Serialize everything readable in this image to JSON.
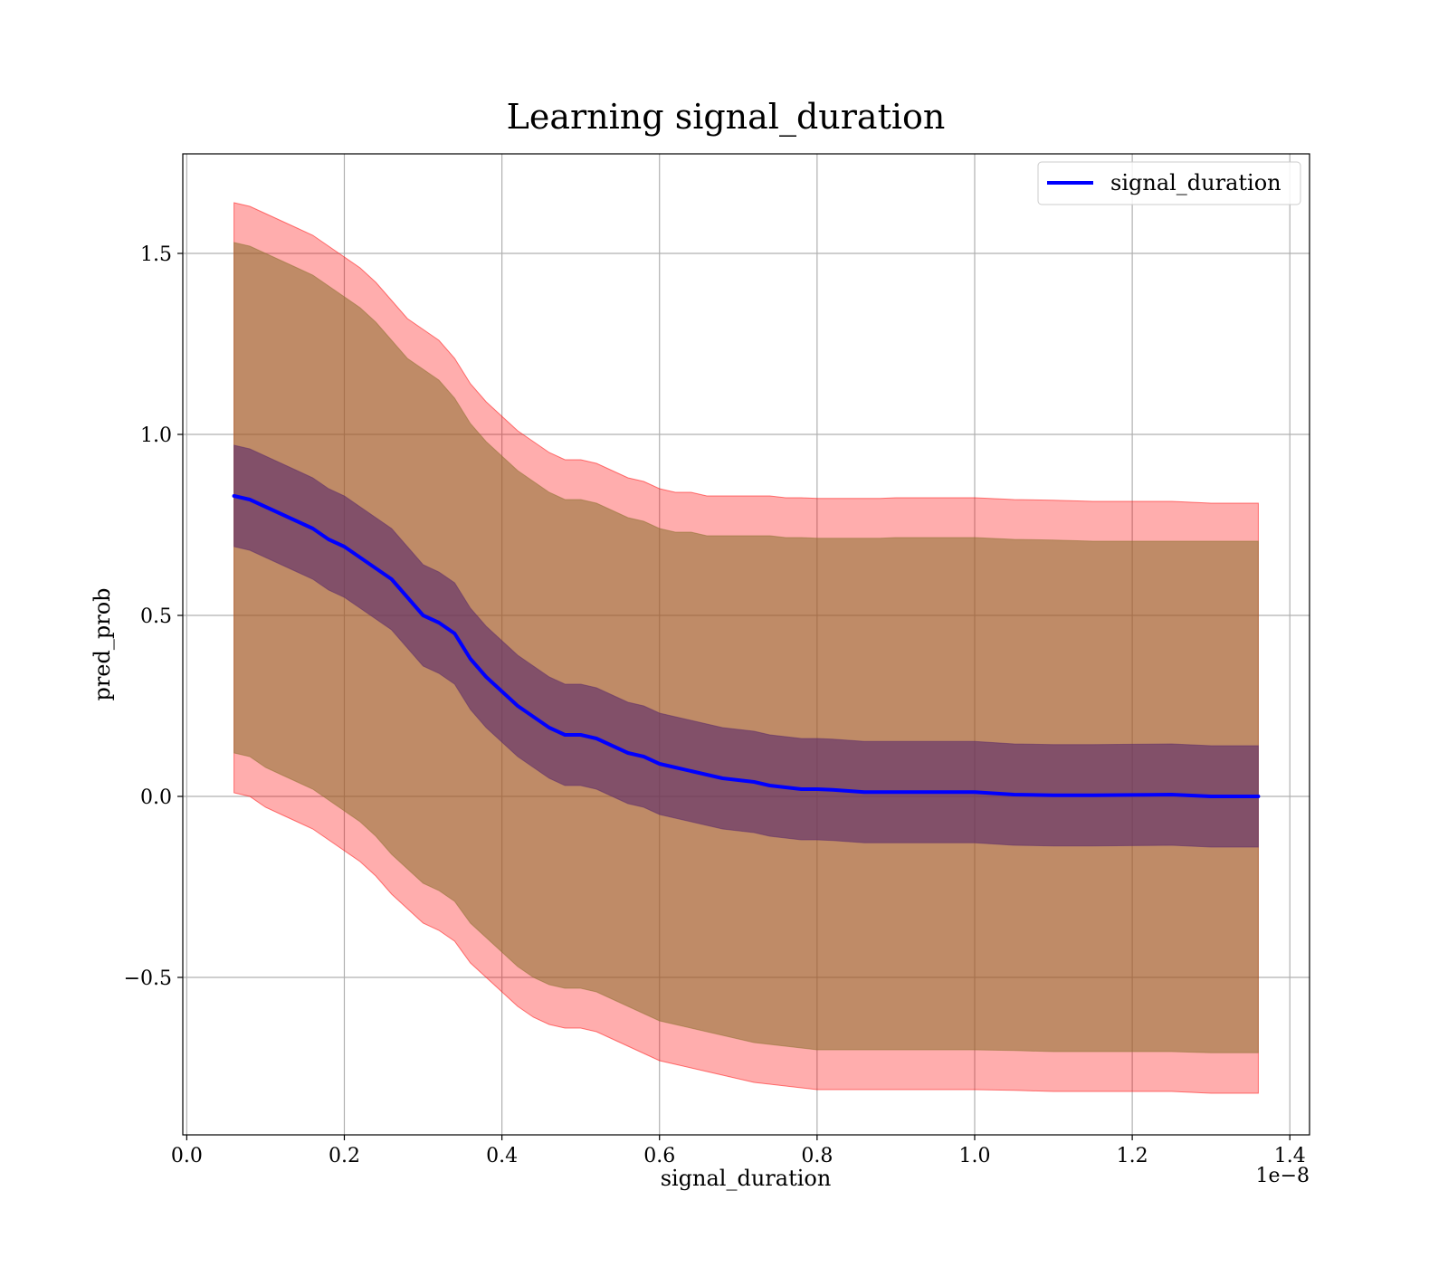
{
  "chart_data": {
    "type": "line",
    "title": "Learning signal_duration",
    "xlabel": "signal_duration",
    "ylabel": "pred_prob",
    "x_offset_label": "1e−8",
    "xlim": [
      -0.005,
      1.425
    ],
    "ylim": [
      -0.935,
      1.775
    ],
    "xticks": [
      0.0,
      0.2,
      0.4,
      0.6,
      0.8,
      1.0,
      1.2,
      1.4
    ],
    "xtick_labels": [
      "0.0",
      "0.2",
      "0.4",
      "0.6",
      "0.8",
      "1.0",
      "1.2",
      "1.4"
    ],
    "yticks": [
      -0.5,
      0.0,
      0.5,
      1.0,
      1.5
    ],
    "ytick_labels": [
      "−0.5",
      "0.0",
      "0.5",
      "1.0",
      "1.5"
    ],
    "grid": true,
    "legend": {
      "placement": "top-right",
      "entries": [
        "signal_duration"
      ]
    },
    "colors": {
      "line": "#0000ff",
      "band_outer": "#ff0000",
      "band_middle": "#8b6f2e",
      "band_inner": "#5a2a6a",
      "grid": "#b0b0b0"
    },
    "x": [
      0.06,
      0.08,
      0.1,
      0.12,
      0.14,
      0.16,
      0.18,
      0.2,
      0.22,
      0.24,
      0.26,
      0.28,
      0.3,
      0.32,
      0.34,
      0.36,
      0.38,
      0.4,
      0.42,
      0.44,
      0.46,
      0.48,
      0.5,
      0.52,
      0.54,
      0.56,
      0.58,
      0.6,
      0.62,
      0.64,
      0.66,
      0.68,
      0.7,
      0.72,
      0.74,
      0.76,
      0.78,
      0.8,
      0.82,
      0.84,
      0.86,
      0.88,
      0.9,
      0.95,
      1.0,
      1.05,
      1.1,
      1.15,
      1.2,
      1.25,
      1.3,
      1.36
    ],
    "series": [
      {
        "name": "signal_duration",
        "values": [
          0.83,
          0.82,
          0.8,
          0.78,
          0.76,
          0.74,
          0.71,
          0.69,
          0.66,
          0.63,
          0.6,
          0.55,
          0.5,
          0.48,
          0.45,
          0.38,
          0.33,
          0.29,
          0.25,
          0.22,
          0.19,
          0.17,
          0.17,
          0.16,
          0.14,
          0.12,
          0.11,
          0.09,
          0.08,
          0.07,
          0.06,
          0.05,
          0.045,
          0.04,
          0.03,
          0.025,
          0.02,
          0.02,
          0.018,
          0.015,
          0.012,
          0.012,
          0.012,
          0.012,
          0.012,
          0.005,
          0.003,
          0.003,
          0.004,
          0.005,
          0.0,
          0.0
        ]
      }
    ],
    "bands": [
      {
        "lower": [
          0.01,
          0.0,
          -0.03,
          -0.05,
          -0.07,
          -0.09,
          -0.12,
          -0.15,
          -0.18,
          -0.22,
          -0.27,
          -0.31,
          -0.35,
          -0.37,
          -0.4,
          -0.46,
          -0.5,
          -0.54,
          -0.58,
          -0.61,
          -0.63,
          -0.64,
          -0.64,
          -0.65,
          -0.67,
          -0.69,
          -0.71,
          -0.73,
          -0.74,
          -0.75,
          -0.76,
          -0.77,
          -0.78,
          -0.79,
          -0.795,
          -0.8,
          -0.805,
          -0.81,
          -0.81,
          -0.81,
          -0.81,
          -0.81,
          -0.81,
          -0.81,
          -0.81,
          -0.812,
          -0.815,
          -0.815,
          -0.815,
          -0.815,
          -0.82,
          -0.82
        ],
        "upper": [
          1.64,
          1.63,
          1.61,
          1.59,
          1.57,
          1.55,
          1.52,
          1.49,
          1.46,
          1.42,
          1.37,
          1.32,
          1.29,
          1.26,
          1.21,
          1.14,
          1.09,
          1.05,
          1.01,
          0.98,
          0.95,
          0.93,
          0.93,
          0.92,
          0.9,
          0.88,
          0.87,
          0.85,
          0.84,
          0.84,
          0.83,
          0.83,
          0.83,
          0.83,
          0.83,
          0.825,
          0.825,
          0.823,
          0.823,
          0.823,
          0.823,
          0.823,
          0.825,
          0.825,
          0.825,
          0.82,
          0.818,
          0.815,
          0.815,
          0.815,
          0.81,
          0.81
        ]
      },
      {
        "lower": [
          0.12,
          0.11,
          0.08,
          0.06,
          0.04,
          0.02,
          -0.01,
          -0.04,
          -0.07,
          -0.11,
          -0.16,
          -0.2,
          -0.24,
          -0.26,
          -0.29,
          -0.35,
          -0.39,
          -0.43,
          -0.47,
          -0.5,
          -0.52,
          -0.53,
          -0.53,
          -0.54,
          -0.56,
          -0.58,
          -0.6,
          -0.62,
          -0.63,
          -0.64,
          -0.65,
          -0.66,
          -0.67,
          -0.68,
          -0.685,
          -0.69,
          -0.695,
          -0.7,
          -0.7,
          -0.7,
          -0.7,
          -0.7,
          -0.7,
          -0.7,
          -0.7,
          -0.702,
          -0.705,
          -0.705,
          -0.705,
          -0.705,
          -0.708,
          -0.708
        ],
        "upper": [
          1.53,
          1.52,
          1.5,
          1.48,
          1.46,
          1.44,
          1.41,
          1.38,
          1.35,
          1.31,
          1.26,
          1.21,
          1.18,
          1.15,
          1.1,
          1.03,
          0.98,
          0.94,
          0.9,
          0.87,
          0.84,
          0.82,
          0.82,
          0.81,
          0.79,
          0.77,
          0.76,
          0.74,
          0.73,
          0.73,
          0.72,
          0.72,
          0.72,
          0.72,
          0.72,
          0.715,
          0.715,
          0.713,
          0.713,
          0.713,
          0.713,
          0.713,
          0.715,
          0.715,
          0.715,
          0.71,
          0.708,
          0.705,
          0.705,
          0.705,
          0.705,
          0.705
        ]
      },
      {
        "lower": [
          0.69,
          0.68,
          0.66,
          0.64,
          0.62,
          0.6,
          0.57,
          0.55,
          0.52,
          0.49,
          0.46,
          0.41,
          0.36,
          0.34,
          0.31,
          0.24,
          0.19,
          0.15,
          0.11,
          0.08,
          0.05,
          0.03,
          0.03,
          0.02,
          0.0,
          -0.02,
          -0.03,
          -0.05,
          -0.06,
          -0.07,
          -0.08,
          -0.09,
          -0.095,
          -0.1,
          -0.11,
          -0.115,
          -0.12,
          -0.12,
          -0.122,
          -0.125,
          -0.128,
          -0.128,
          -0.128,
          -0.128,
          -0.128,
          -0.135,
          -0.137,
          -0.137,
          -0.136,
          -0.135,
          -0.14,
          -0.14
        ],
        "upper": [
          0.97,
          0.96,
          0.94,
          0.92,
          0.9,
          0.88,
          0.85,
          0.83,
          0.8,
          0.77,
          0.74,
          0.69,
          0.64,
          0.62,
          0.59,
          0.52,
          0.47,
          0.43,
          0.39,
          0.36,
          0.33,
          0.31,
          0.31,
          0.3,
          0.28,
          0.26,
          0.25,
          0.23,
          0.22,
          0.21,
          0.2,
          0.19,
          0.185,
          0.18,
          0.17,
          0.165,
          0.16,
          0.16,
          0.158,
          0.155,
          0.152,
          0.152,
          0.152,
          0.152,
          0.152,
          0.145,
          0.143,
          0.143,
          0.144,
          0.145,
          0.14,
          0.14
        ]
      }
    ]
  }
}
